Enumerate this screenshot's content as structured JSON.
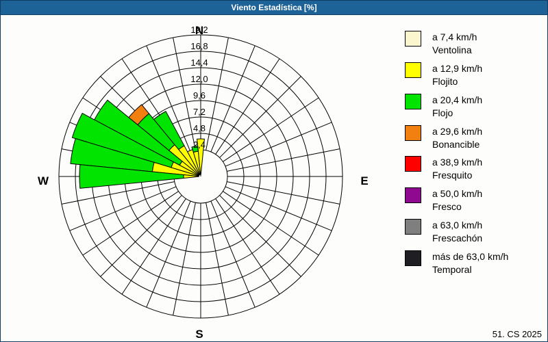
{
  "window_title": "Viento Estadística [%]",
  "footer": {
    "note": "51. CS 2025"
  },
  "colors": {
    "titlebar": "#1d6397",
    "border": "#0f3c64",
    "ventolina": "#fbf6ce",
    "flojito": "#ffff00",
    "flojo": "#00e400",
    "bonancible": "#f28011",
    "fresquito": "#ff0000",
    "fresco": "#8e0990",
    "frescachon": "#7f7f7f",
    "temporal": "#1f1f23"
  },
  "legend": {
    "items": [
      {
        "speed": "a 7,4 km/h",
        "name": "Ventolina",
        "color_key": "ventolina"
      },
      {
        "speed": "a 12,9 km/h",
        "name": "Flojito",
        "color_key": "flojito"
      },
      {
        "speed": "a 20,4 km/h",
        "name": "Flojo",
        "color_key": "flojo"
      },
      {
        "speed": "a 29,6 km/h",
        "name": "Bonancible",
        "color_key": "bonancible"
      },
      {
        "speed": "a 38,9 km/h",
        "name": "Fresquito",
        "color_key": "fresquito"
      },
      {
        "speed": "a 50,0 km/h",
        "name": "Fresco",
        "color_key": "fresco"
      },
      {
        "speed": "a 63,0 km/h",
        "name": "Frescachón",
        "color_key": "frescachon"
      },
      {
        "speed": "más de 63,0 km/h",
        "name": "Temporal",
        "color_key": "temporal"
      }
    ]
  },
  "chart_data": {
    "type": "windrose",
    "title": "Viento Estadística [%]",
    "units": "%",
    "ring_step": 2.4,
    "ring_max": 19.2,
    "ring_labels": [
      "2,4",
      "4,8",
      "7,2",
      "9,6",
      "12,0",
      "14,4",
      "16,8",
      "19,2"
    ],
    "compass": {
      "n": "N",
      "e": "E",
      "s": "S",
      "w": "W"
    },
    "sector_width_deg": 11.25,
    "sectors": [
      {
        "dir": "N",
        "deg": 0,
        "segments": [
          {
            "class": "flojito",
            "value": 4.0
          }
        ]
      },
      {
        "dir": "NbW",
        "deg": 348.75,
        "segments": [
          {
            "class": "flojito",
            "value": 2.2
          },
          {
            "class": "flojo",
            "value": 0.8
          }
        ]
      },
      {
        "dir": "NNW",
        "deg": 337.5,
        "segments": [
          {
            "class": "flojito",
            "value": 2.6
          }
        ]
      },
      {
        "dir": "NWbN",
        "deg": 326.25,
        "segments": [
          {
            "class": "flojito",
            "value": 3.6
          },
          {
            "class": "flojo",
            "value": 5.7
          }
        ]
      },
      {
        "dir": "NW",
        "deg": 315,
        "segments": [
          {
            "class": "flojito",
            "value": 4.5
          },
          {
            "class": "flojo",
            "value": 5.9
          },
          {
            "class": "bonancible",
            "value": 1.7
          }
        ]
      },
      {
        "dir": "NWbW",
        "deg": 303.75,
        "segments": [
          {
            "class": "flojito",
            "value": 2.0
          },
          {
            "class": "flojo",
            "value": 14.1
          }
        ]
      },
      {
        "dir": "WNW",
        "deg": 292.5,
        "segments": [
          {
            "class": "flojito",
            "value": 3.0
          },
          {
            "class": "flojo",
            "value": 15.1
          }
        ]
      },
      {
        "dir": "WbN",
        "deg": 281.25,
        "segments": [
          {
            "class": "flojito",
            "value": 5.6
          },
          {
            "class": "flojo",
            "value": 12.0
          }
        ]
      },
      {
        "dir": "W",
        "deg": 270,
        "segments": [
          {
            "class": "flojito",
            "value": 1.0
          },
          {
            "class": "flojo",
            "value": 15.2
          }
        ]
      }
    ]
  }
}
